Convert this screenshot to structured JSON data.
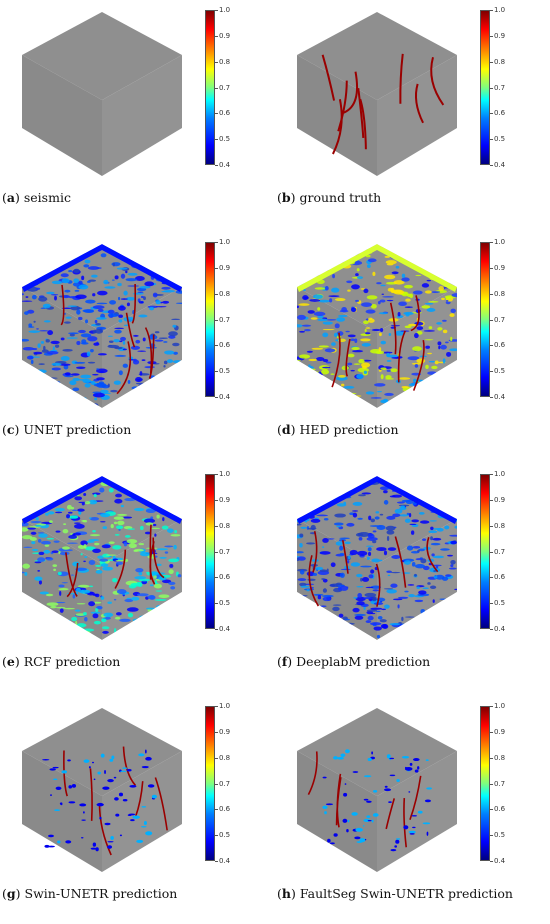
{
  "colorbar": {
    "ticks": [
      "1.0",
      "0.9",
      "0.8",
      "0.7",
      "0.6",
      "0.5",
      "0.4"
    ]
  },
  "panels": [
    {
      "letter": "a",
      "caption": " seismic",
      "variant": "plain"
    },
    {
      "letter": "b",
      "caption": " ground truth",
      "variant": "truth"
    },
    {
      "letter": "c",
      "caption": " UNET prediction",
      "variant": "dense"
    },
    {
      "letter": "d",
      "caption": " HED prediction",
      "variant": "dense-yellow"
    },
    {
      "letter": "e",
      "caption": " RCF prediction",
      "variant": "dense-cyan"
    },
    {
      "letter": "f",
      "caption": " DeeplabM prediction",
      "variant": "dense"
    },
    {
      "letter": "g",
      "caption": " Swin-UNETR prediction",
      "variant": "sparse"
    },
    {
      "letter": "h",
      "caption": " FaultSeg Swin-UNETR prediction",
      "variant": "sparse"
    }
  ]
}
